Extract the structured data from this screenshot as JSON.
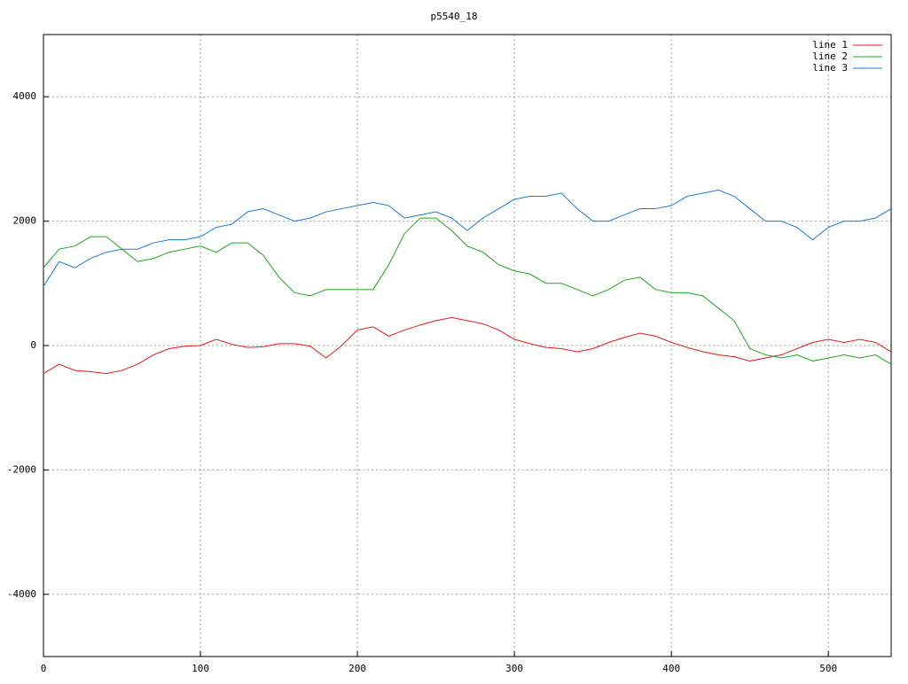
{
  "chart_data": {
    "type": "line",
    "title": "p5540_18",
    "x": [
      0,
      10,
      20,
      30,
      40,
      50,
      60,
      70,
      80,
      90,
      100,
      110,
      120,
      130,
      140,
      150,
      160,
      170,
      180,
      190,
      200,
      210,
      220,
      230,
      240,
      250,
      260,
      270,
      280,
      290,
      300,
      310,
      320,
      330,
      340,
      350,
      360,
      370,
      380,
      390,
      400,
      410,
      420,
      430,
      440,
      450,
      460,
      470,
      480,
      490,
      500,
      510,
      520,
      530,
      540
    ],
    "series": [
      {
        "name": "line 1",
        "color": "#e41a1c",
        "values": [
          -450,
          -300,
          -400,
          -420,
          -450,
          -400,
          -300,
          -150,
          -50,
          -10,
          0,
          100,
          20,
          -30,
          -20,
          30,
          30,
          -10,
          -200,
          0,
          250,
          300,
          150,
          250,
          330,
          400,
          450,
          400,
          350,
          250,
          100,
          30,
          -30,
          -50,
          -100,
          -50,
          50,
          130,
          200,
          150,
          50,
          -30,
          -100,
          -150,
          -180,
          -250,
          -200,
          -150,
          -50,
          50,
          100,
          50,
          100,
          50,
          -100
        ]
      },
      {
        "name": "line 2",
        "color": "#1ca61c",
        "values": [
          1250,
          1550,
          1600,
          1750,
          1750,
          1550,
          1350,
          1400,
          1500,
          1550,
          1600,
          1500,
          1650,
          1650,
          1450,
          1100,
          850,
          800,
          900,
          900,
          900,
          900,
          1300,
          1800,
          2050,
          2050,
          1850,
          1600,
          1500,
          1300,
          1200,
          1150,
          1000,
          1000,
          900,
          800,
          900,
          1050,
          1100,
          900,
          850,
          850,
          800,
          600,
          400,
          -50,
          -150,
          -200,
          -150,
          -250,
          -200,
          -150,
          -200,
          -150,
          -300
        ]
      },
      {
        "name": "line 3",
        "color": "#1a7ad4",
        "values": [
          950,
          1350,
          1250,
          1400,
          1500,
          1550,
          1550,
          1650,
          1700,
          1700,
          1750,
          1900,
          1950,
          2150,
          2200,
          2100,
          2000,
          2050,
          2150,
          2200,
          2250,
          2300,
          2250,
          2050,
          2100,
          2150,
          2050,
          1850,
          2050,
          2200,
          2350,
          2400,
          2400,
          2450,
          2200,
          2000,
          2000,
          2100,
          2200,
          2200,
          2250,
          2400,
          2450,
          2500,
          2400,
          2200,
          2000,
          2000,
          1900,
          1700,
          1900,
          2000,
          2000,
          2050,
          2200
        ]
      }
    ],
    "xlim": [
      0,
      540
    ],
    "xticks": [
      0,
      100,
      200,
      300,
      400,
      500
    ],
    "ylim": [
      -5000,
      5000
    ],
    "yticks": [
      -4000,
      -2000,
      0,
      2000,
      4000
    ],
    "grid": true,
    "legend": "top-right"
  }
}
